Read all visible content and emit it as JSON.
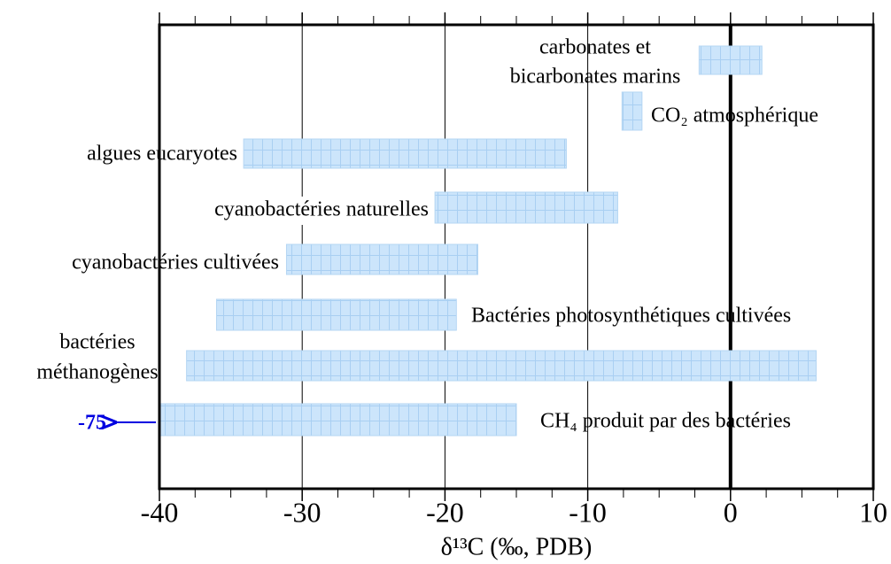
{
  "chart_data": {
    "type": "floating-bar",
    "categories": [
      [
        "carbonates et",
        "bicarbonates marins"
      ],
      "CO₂ atmosphérique",
      "algues eucaryotes",
      "cyanobactéries naturelles",
      "cyanobactéries cultivées",
      "Bactéries photosynthétiques cultivées",
      [
        "bactéries",
        "méthanogènes"
      ],
      "CH₄ produit par des bactéries"
    ],
    "values": [
      [
        -2.2,
        2.2
      ],
      [
        -7.6,
        -6.2
      ],
      [
        -34.1,
        -11.5
      ],
      [
        -20.7,
        -7.9
      ],
      [
        -31.1,
        -17.7
      ],
      [
        -36,
        -19.2
      ],
      [
        -38.1,
        6
      ],
      [
        -40,
        -15
      ]
    ],
    "color": "#cce5fb",
    "annotation": {
      "text": "-75",
      "value": -75,
      "color": "#0000e0"
    },
    "x_label": "δ¹³C (‰, PDB)",
    "xlim": [
      -40,
      10
    ],
    "xticks": [
      -40,
      -30,
      -20,
      -10,
      0,
      10
    ],
    "xminorticks": [
      -37.5,
      -35,
      -32.5,
      -27.5,
      -25,
      -22.5,
      -17.5,
      -15,
      -12.5,
      -7.5,
      -5,
      -2.5,
      2.5,
      5,
      7.5
    ],
    "grid": true
  }
}
